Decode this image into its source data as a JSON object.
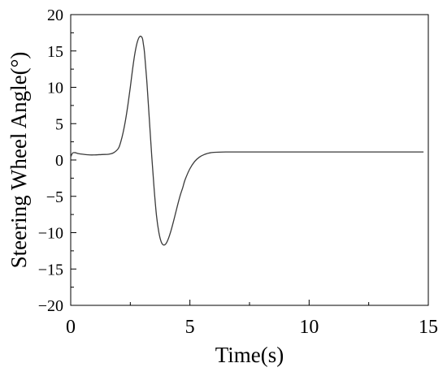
{
  "chart_data": {
    "type": "line",
    "title": "",
    "xlabel": "Time(s)",
    "ylabel": "Steering Wheel Angle(°)",
    "xlim": [
      0,
      15
    ],
    "ylim": [
      -20,
      20
    ],
    "xticks": [
      0,
      5,
      10,
      15
    ],
    "xtick_labels": [
      "0",
      "5",
      "10",
      "15"
    ],
    "yticks": [
      -20,
      -15,
      -10,
      -5,
      0,
      5,
      10,
      15,
      20
    ],
    "ytick_labels": [
      "−20",
      "−15",
      "−10",
      "−5",
      "0",
      "5",
      "10",
      "15",
      "20"
    ],
    "grid": false,
    "legend": "none",
    "line_color": "#3a3a3a",
    "series": [
      {
        "x": [
          0.0,
          0.05,
          0.1,
          0.2,
          0.3,
          0.5,
          0.8,
          1.0,
          1.3,
          1.6,
          1.8,
          2.0,
          2.1,
          2.2,
          2.3,
          2.4,
          2.5,
          2.6,
          2.7,
          2.8,
          2.9,
          3.0,
          3.05,
          3.1,
          3.2,
          3.3,
          3.4,
          3.5,
          3.6,
          3.7,
          3.8,
          3.9,
          4.0,
          4.1,
          4.2,
          4.3,
          4.4,
          4.5,
          4.6,
          4.7,
          4.8,
          5.0,
          5.2,
          5.4,
          5.6,
          5.8,
          6.0,
          6.5,
          7.0,
          8.0,
          10.0,
          12.0,
          14.8
        ],
        "y": [
          0.4,
          0.8,
          1.0,
          1.0,
          0.9,
          0.8,
          0.7,
          0.7,
          0.75,
          0.8,
          1.0,
          1.6,
          2.5,
          3.8,
          5.5,
          7.6,
          10.0,
          12.6,
          14.8,
          16.3,
          17.0,
          16.8,
          15.9,
          14.6,
          10.5,
          5.5,
          0.5,
          -4.0,
          -7.7,
          -10.0,
          -11.3,
          -11.7,
          -11.5,
          -10.8,
          -9.8,
          -8.6,
          -7.3,
          -6.0,
          -4.8,
          -3.8,
          -2.7,
          -1.2,
          -0.2,
          0.4,
          0.75,
          0.95,
          1.05,
          1.1,
          1.1,
          1.1,
          1.1,
          1.1,
          1.1
        ]
      }
    ]
  }
}
